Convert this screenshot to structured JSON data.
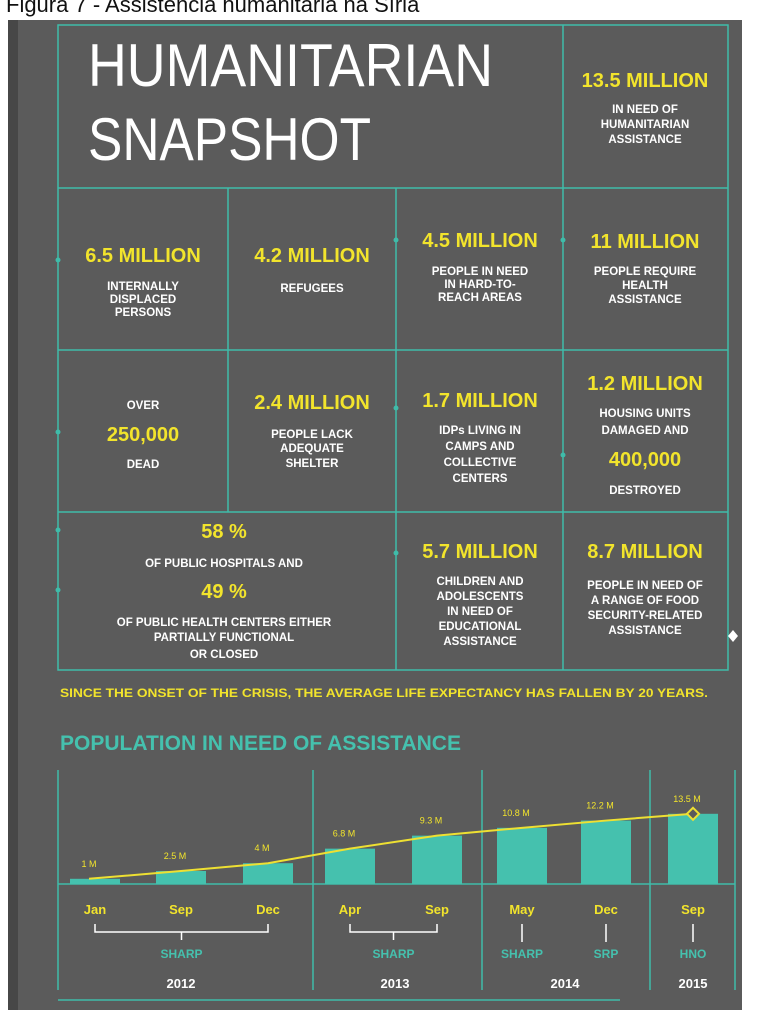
{
  "header": {
    "caption": "Figura 7 - Assistência humanitária na Síria"
  },
  "snapshot": {
    "title": [
      "HUMANITARIAN",
      "SNAPSHOT"
    ],
    "cells": [
      {
        "lines": [
          "13.5 MILLION",
          "IN NEED OF",
          "HUMANITARIAN",
          "ASSISTANCE"
        ]
      },
      {
        "lines": [
          "6.5 MILLION",
          "INTERNALLY",
          "DISPLACED",
          "PERSONS"
        ]
      },
      {
        "lines": [
          "4.2 MILLION",
          "REFUGEES"
        ]
      },
      {
        "lines": [
          "4.5 MILLION",
          "PEOPLE IN NEED",
          "IN HARD-TO-",
          "REACH AREAS"
        ]
      },
      {
        "lines": [
          "11 MILLION",
          "PEOPLE REQUIRE",
          "HEALTH",
          "ASSISTANCE"
        ]
      },
      {
        "lines": [
          "OVER",
          "250,000",
          "DEAD"
        ]
      },
      {
        "lines": [
          "2.4 MILLION",
          "PEOPLE LACK",
          "ADEQUATE",
          "SHELTER"
        ]
      },
      {
        "lines": [
          "1.7 MILLION",
          "IDPs LIVING IN",
          "CAMPS AND",
          "COLLECTIVE",
          "CENTERS"
        ]
      },
      {
        "lines": [
          "1.2 MILLION",
          "HOUSING UNITS",
          "DAMAGED AND",
          "400,000",
          "DESTROYED"
        ]
      },
      {
        "lines": [
          "58 %",
          "OF PUBLIC HOSPITALS AND",
          "49 %",
          "OF PUBLIC HEALTH CENTERS EITHER",
          "PARTIALLY FUNCTIONAL",
          "OR CLOSED"
        ]
      },
      {
        "lines": [
          "5.7  MILLION",
          "CHILDREN AND",
          "ADOLESCENTS",
          "IN NEED OF",
          "EDUCATIONAL",
          "ASSISTANCE"
        ]
      },
      {
        "lines": [
          "8.7 MILLION",
          "PEOPLE IN NEED OF",
          "A RANGE OF FOOD",
          "SECURITY-RELATED",
          "ASSISTANCE"
        ]
      }
    ],
    "note": "SINCE THE ONSET OF THE CRISIS, THE AVERAGE LIFE EXPECTANCY HAS FALLEN BY 20 YEARS."
  },
  "chart_data": {
    "type": "bar",
    "title": "POPULATION IN NEED OF ASSISTANCE",
    "color": "#45c1ae",
    "line_color": "#eee032",
    "periods": [
      {
        "year": "2012",
        "programs": [
          "SHARP"
        ],
        "categories": [
          "Jan",
          "Sep",
          "Dec"
        ],
        "values": [
          1,
          2.5,
          4
        ],
        "value_labels": [
          "1 M",
          "2.5 M",
          "4 M"
        ]
      },
      {
        "year": "2013",
        "programs": [
          "SHARP"
        ],
        "categories": [
          "Apr",
          "Sep"
        ],
        "values": [
          6.8,
          9.3
        ],
        "value_labels": [
          "6.8 M",
          "9.3 M"
        ]
      },
      {
        "year": "2014",
        "programs": [
          "SHARP",
          "SRP"
        ],
        "categories": [
          "May",
          "Dec"
        ],
        "values": [
          10.8,
          12.2
        ],
        "value_labels": [
          "10.8 M",
          "12.2 M"
        ]
      },
      {
        "year": "2015",
        "programs": [
          "HNO"
        ],
        "categories": [
          "Sep"
        ],
        "values": [
          13.5
        ],
        "value_labels": [
          "13.5 M"
        ]
      }
    ]
  }
}
